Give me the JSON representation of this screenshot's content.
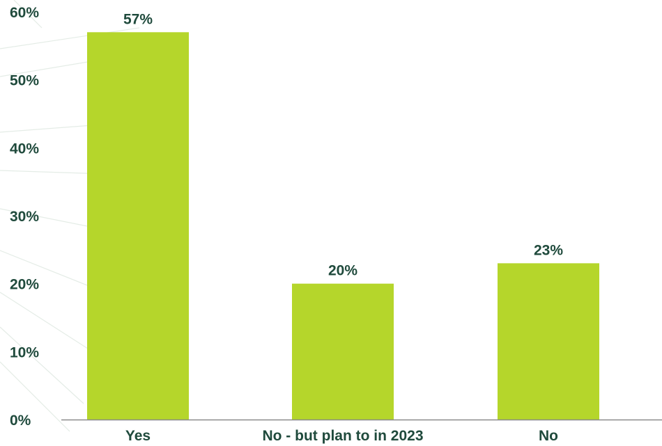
{
  "chart_data": {
    "type": "bar",
    "categories": [
      "Yes",
      "No - but plan to in 2023",
      "No"
    ],
    "values": [
      57,
      20,
      23
    ],
    "data_labels": [
      "57%",
      "20%",
      "23%"
    ],
    "y_ticks": [
      {
        "value": 0,
        "label": "0%"
      },
      {
        "value": 10,
        "label": "10%"
      },
      {
        "value": 20,
        "label": "20%"
      },
      {
        "value": 30,
        "label": "30%"
      },
      {
        "value": 40,
        "label": "40%"
      },
      {
        "value": 50,
        "label": "50%"
      },
      {
        "value": 60,
        "label": "60%"
      }
    ],
    "ylim": [
      0,
      60
    ],
    "title": "",
    "xlabel": "",
    "ylabel": "",
    "grid": false,
    "legend": "none"
  },
  "colors": {
    "bar": "#b5d62b",
    "text": "#1f4a3c",
    "axis": "#8a8a8a",
    "decoration": "#e4ece6"
  }
}
